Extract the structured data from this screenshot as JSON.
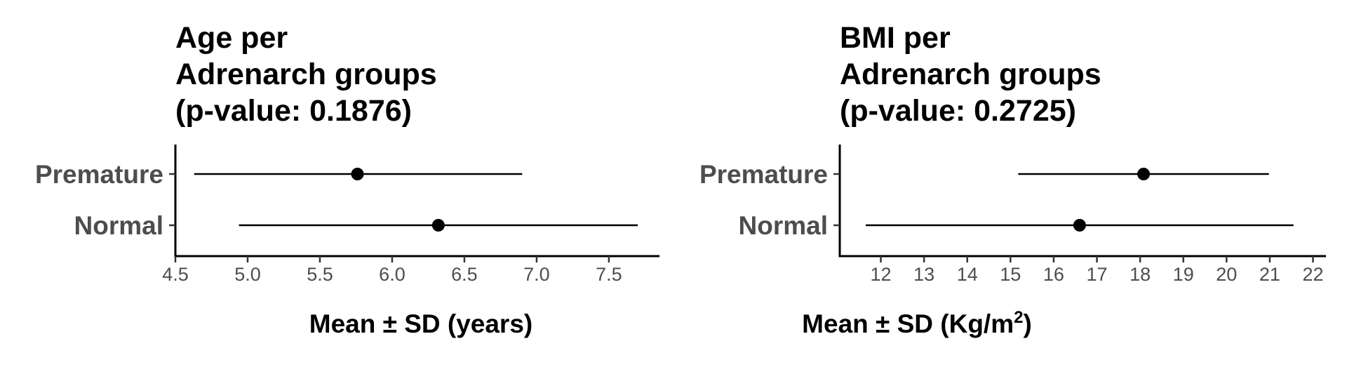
{
  "chart_data": [
    {
      "type": "scatter",
      "title": [
        "Age per",
        "Adrenarch groups",
        "(p-value: 0.1876)"
      ],
      "categories": [
        "Premature",
        "Normal"
      ],
      "mean": [
        5.76,
        6.32
      ],
      "sd_low": [
        4.63,
        4.94
      ],
      "sd_high": [
        6.9,
        7.7
      ],
      "xlim": [
        4.5,
        7.85
      ],
      "xticks": [
        4.5,
        5.0,
        5.5,
        6.0,
        6.5,
        7.0,
        7.5
      ],
      "xtick_labels": [
        "4.5",
        "5.0",
        "5.5",
        "6.0",
        "6.5",
        "7.0",
        "7.5"
      ],
      "xlabel": "Mean ± SD (years)",
      "xlabel_unit": "years",
      "grid": false
    },
    {
      "type": "scatter",
      "title": [
        "BMI per",
        "Adrenarch groups",
        "(p-value: 0.2725)"
      ],
      "categories": [
        "Premature",
        "Normal"
      ],
      "mean": [
        18.08,
        16.6
      ],
      "sd_low": [
        15.18,
        11.65
      ],
      "sd_high": [
        20.98,
        21.55
      ],
      "xlim": [
        11.05,
        22.3
      ],
      "xticks": [
        12,
        13,
        14,
        15,
        16,
        17,
        18,
        19,
        20,
        21,
        22
      ],
      "xtick_labels": [
        "12",
        "13",
        "14",
        "15",
        "16",
        "17",
        "18",
        "19",
        "20",
        "21",
        "22"
      ],
      "xlabel": "Mean ± SD (Kg/m2)",
      "xlabel_unit": "Kg/m",
      "xlabel_unit_sup": "2",
      "grid": false
    }
  ]
}
